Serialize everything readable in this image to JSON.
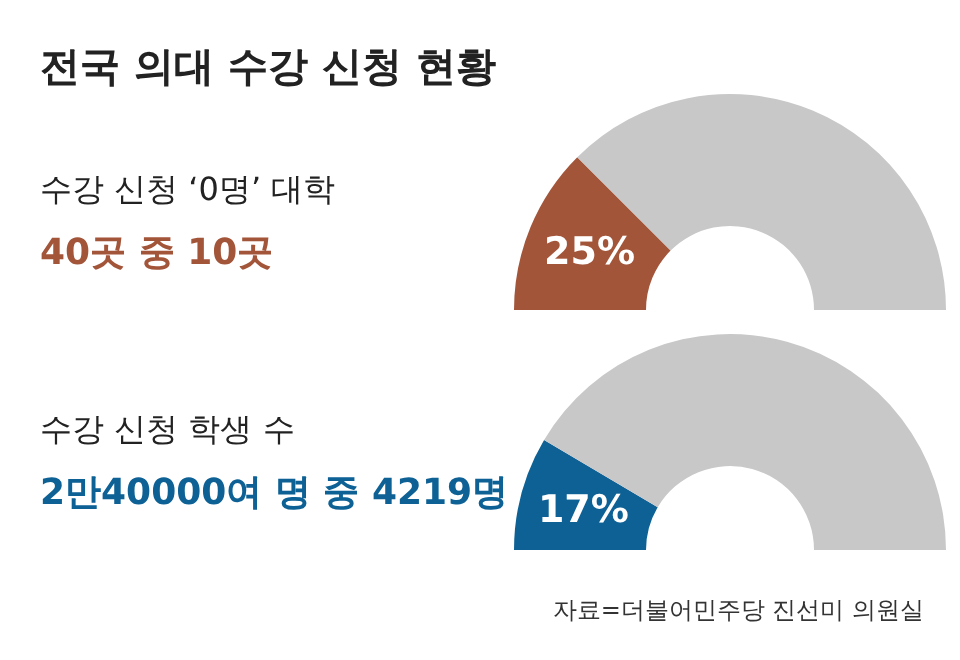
{
  "chart_data": [
    {
      "type": "donut",
      "title": "전국 의대 수강 신청 현황",
      "subtitle": "수강 신청 ‘0명’ 대학",
      "annotations": [
        "40곳 중 10곳"
      ],
      "categories": [
        null,
        null
      ],
      "values": [
        25,
        75
      ],
      "colors": [
        "#a3553a",
        "#c8c8c8"
      ],
      "value_labels": [
        "25%",
        null
      ]
    },
    {
      "type": "donut",
      "subtitle": "수강 신청 학생 수",
      "annotations": [
        "2만40000여 명 중 4219명",
        "자료=더불어민주당 진선미 의원실"
      ],
      "categories": [
        null,
        null
      ],
      "values": [
        17,
        83
      ],
      "colors": [
        "#0d6195",
        "#c8c8c8"
      ],
      "value_labels": [
        "17%",
        null
      ]
    }
  ]
}
